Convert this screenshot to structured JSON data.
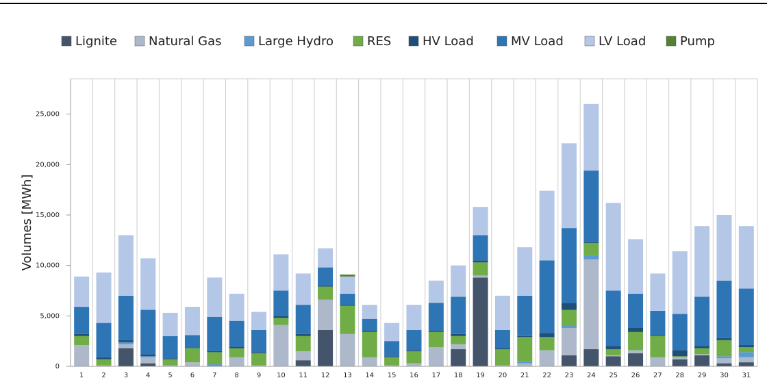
{
  "chart_data": {
    "type": "stacked-bar",
    "y_label": "Volumes [MWh]",
    "categories": [
      "1",
      "2",
      "3",
      "4",
      "5",
      "6",
      "7",
      "8",
      "9",
      "10",
      "11",
      "12",
      "13",
      "14",
      "15",
      "16",
      "17",
      "18",
      "19",
      "20",
      "21",
      "22",
      "23",
      "24",
      "25",
      "26",
      "27",
      "28",
      "29",
      "30",
      "31"
    ],
    "ylim": [
      0,
      28500
    ],
    "yticks": [
      0,
      {
        "value": 5000,
        "label": "5,000"
      },
      {
        "value": 10000,
        "label": "10,000"
      },
      {
        "value": 15000,
        "label": "15,000"
      },
      {
        "value": 20000,
        "label": "20,000"
      },
      {
        "value": 25000,
        "label": "25,000"
      }
    ],
    "series": [
      {
        "name": "Lignite",
        "color": "#44546a",
        "values": [
          0,
          0,
          1800,
          300,
          0,
          0,
          0,
          0,
          0,
          0,
          600,
          3600,
          0,
          0,
          0,
          0,
          0,
          1700,
          8800,
          0,
          0,
          0,
          1100,
          1700,
          1000,
          1300,
          0,
          700,
          1100,
          300,
          400
        ]
      },
      {
        "name": "Natural Gas",
        "color": "#adb9ca",
        "values": [
          2100,
          100,
          400,
          600,
          100,
          400,
          0,
          900,
          100,
          4100,
          900,
          3000,
          3200,
          900,
          100,
          300,
          1900,
          500,
          200,
          100,
          300,
          1600,
          2700,
          8900,
          100,
          300,
          900,
          200,
          100,
          500,
          500
        ]
      },
      {
        "name": "Large Hydro",
        "color": "#5b9bd5",
        "values": [
          0,
          0,
          200,
          100,
          0,
          0,
          200,
          0,
          0,
          0,
          0,
          0,
          0,
          0,
          0,
          0,
          0,
          0,
          0,
          0,
          200,
          0,
          200,
          400,
          0,
          0,
          0,
          0,
          0,
          200,
          500
        ]
      },
      {
        "name": "RES",
        "color": "#70ad47",
        "values": [
          900,
          600,
          0,
          0,
          600,
          1400,
          1200,
          900,
          1200,
          700,
          1500,
          1300,
          2800,
          2500,
          800,
          1200,
          1500,
          800,
          1300,
          1600,
          2400,
          1300,
          1600,
          1200,
          600,
          1800,
          2100,
          100,
          600,
          1600,
          500
        ]
      },
      {
        "name": "HV Load",
        "color": "#1f4e79",
        "values": [
          200,
          200,
          200,
          200,
          100,
          0,
          100,
          100,
          100,
          200,
          200,
          100,
          100,
          100,
          100,
          100,
          100,
          200,
          200,
          100,
          100,
          400,
          700,
          100,
          300,
          400,
          100,
          600,
          200,
          200,
          200
        ]
      },
      {
        "name": "MV Load",
        "color": "#2e75b6",
        "values": [
          2700,
          3400,
          4400,
          4400,
          2200,
          1300,
          3400,
          2600,
          2200,
          2500,
          2900,
          1800,
          1100,
          1200,
          1500,
          2000,
          2800,
          3700,
          2500,
          1800,
          4000,
          7200,
          7400,
          7100,
          5500,
          3400,
          2400,
          3600,
          4900,
          5700,
          5600
        ]
      },
      {
        "name": "LV Load",
        "color": "#b4c7e7",
        "values": [
          3000,
          5000,
          6000,
          5100,
          2300,
          2800,
          3900,
          2700,
          1800,
          3600,
          3100,
          1900,
          1700,
          1400,
          1800,
          2500,
          2200,
          3100,
          2800,
          3400,
          4800,
          6900,
          8400,
          6600,
          8700,
          5400,
          3700,
          6200,
          7000,
          6500,
          6200
        ]
      },
      {
        "name": "Pump",
        "color": "#548235",
        "values": [
          0,
          0,
          0,
          0,
          0,
          0,
          0,
          0,
          0,
          0,
          0,
          0,
          200,
          0,
          0,
          0,
          0,
          0,
          0,
          0,
          0,
          0,
          0,
          0,
          0,
          0,
          0,
          0,
          0,
          0,
          0
        ]
      }
    ]
  }
}
